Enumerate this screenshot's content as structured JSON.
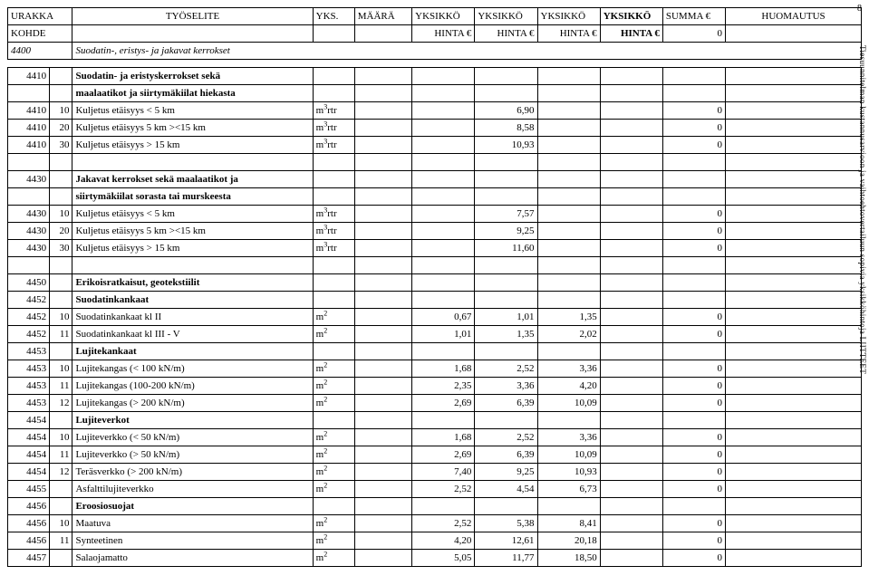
{
  "page_number": "8",
  "side_text": "Tiesuunnitelman kustannusarvioon ja vaihtoehtovertailuun sopivia yksikköhintoja LIITTEET",
  "header": {
    "c1": "URAKKA",
    "c2": "TYÖSELITE",
    "c3": "YKS.",
    "c4": "MÄÄRÄ",
    "c5": "YKSIKKÖ",
    "c6": "YKSIKKÖ",
    "c7": "YKSIKKÖ",
    "c8": "YKSIKKÖ",
    "c9": "SUMMA €",
    "c10": "HUOMAUTUS",
    "r2c1": "KOHDE",
    "r2c5": "HINTA €",
    "r2c6": "HINTA €",
    "r2c7": "HINTA €",
    "r2c8": "HINTA €",
    "r2c9": "0"
  },
  "cols": {
    "w1": "40px",
    "w2": "22px",
    "w3": "230px",
    "w4": "40px",
    "w5": "55px",
    "w6": "60px",
    "w7": "60px",
    "w8": "60px",
    "w9": "60px",
    "w10": "60px",
    "w11": "130px"
  },
  "rows": [
    {
      "type": "section",
      "code": "4400",
      "desc": "Suodatin-, eristys- ja jakavat kerrokset"
    },
    {
      "type": "gap"
    },
    {
      "type": "group",
      "code": "4410",
      "desc": "Suodatin- ja eristyskerrokset sekä"
    },
    {
      "type": "groupcont",
      "desc": "maalaatikot ja siirtymäkiilat hiekasta"
    },
    {
      "type": "data",
      "code": "4410",
      "sub": "10",
      "desc": "Kuljetus etäisyys < 5 km",
      "unit": "m³rtr",
      "v1": "",
      "v2": "",
      "v3": "6,90",
      "v4": "",
      "sum": "0"
    },
    {
      "type": "data",
      "code": "4410",
      "sub": "20",
      "desc": "Kuljetus etäisyys 5 km ><15 km",
      "unit": "m³rtr",
      "v1": "",
      "v2": "",
      "v3": "8,58",
      "v4": "",
      "sum": "0"
    },
    {
      "type": "data",
      "code": "4410",
      "sub": "30",
      "desc": "Kuljetus etäisyys > 15 km",
      "unit": "m³rtr",
      "v1": "",
      "v2": "",
      "v3": "10,93",
      "v4": "",
      "sum": "0"
    },
    {
      "type": "blank"
    },
    {
      "type": "group",
      "code": "4430",
      "desc": "Jakavat kerrokset sekä maalaatikot ja"
    },
    {
      "type": "groupcont",
      "desc": "siirtymäkiilat sorasta tai murskeesta"
    },
    {
      "type": "data",
      "code": "4430",
      "sub": "10",
      "desc": "Kuljetus etäisyys < 5 km",
      "unit": "m³rtr",
      "v1": "",
      "v2": "",
      "v3": "7,57",
      "v4": "",
      "sum": "0"
    },
    {
      "type": "data",
      "code": "4430",
      "sub": "20",
      "desc": "Kuljetus etäisyys 5 km ><15 km",
      "unit": "m³rtr",
      "v1": "",
      "v2": "",
      "v3": "9,25",
      "v4": "",
      "sum": "0"
    },
    {
      "type": "data",
      "code": "4430",
      "sub": "30",
      "desc": "Kuljetus etäisyys > 15 km",
      "unit": "m³rtr",
      "v1": "",
      "v2": "",
      "v3": "11,60",
      "v4": "",
      "sum": "0"
    },
    {
      "type": "blank"
    },
    {
      "type": "group",
      "code": "4450",
      "desc": "Erikoisratkaisut, geotekstiilit"
    },
    {
      "type": "group",
      "code": "4452",
      "desc": "Suodatinkankaat"
    },
    {
      "type": "data",
      "code": "4452",
      "sub": "10",
      "desc": "Suodatinkankaat kl II",
      "unit": "m²",
      "v1": "",
      "v2": "0,67",
      "v3": "1,01",
      "v4": "1,35",
      "sum": "0"
    },
    {
      "type": "data",
      "code": "4452",
      "sub": "11",
      "desc": "Suodatinkankaat kl III - V",
      "unit": "m²",
      "v1": "",
      "v2": "1,01",
      "v3": "1,35",
      "v4": "2,02",
      "sum": "0"
    },
    {
      "type": "group",
      "code": "4453",
      "desc": "Lujitekankaat"
    },
    {
      "type": "data",
      "code": "4453",
      "sub": "10",
      "desc": "Lujitekangas (< 100 kN/m)",
      "unit": "m²",
      "v1": "",
      "v2": "1,68",
      "v3": "2,52",
      "v4": "3,36",
      "sum": "0"
    },
    {
      "type": "data",
      "code": "4453",
      "sub": "11",
      "desc": "Lujitekangas (100-200 kN/m)",
      "unit": "m²",
      "v1": "",
      "v2": "2,35",
      "v3": "3,36",
      "v4": "4,20",
      "sum": "0"
    },
    {
      "type": "data",
      "code": "4453",
      "sub": "12",
      "desc": "Lujitekangas (> 200 kN/m)",
      "unit": "m²",
      "v1": "",
      "v2": "2,69",
      "v3": "6,39",
      "v4": "10,09",
      "sum": "0"
    },
    {
      "type": "group",
      "code": "4454",
      "desc": "Lujiteverkot"
    },
    {
      "type": "data",
      "code": "4454",
      "sub": "10",
      "desc": "Lujiteverkko (< 50 kN/m)",
      "unit": "m²",
      "v1": "",
      "v2": "1,68",
      "v3": "2,52",
      "v4": "3,36",
      "sum": "0"
    },
    {
      "type": "data",
      "code": "4454",
      "sub": "11",
      "desc": "Lujiteverkko (> 50 kN/m)",
      "unit": "m²",
      "v1": "",
      "v2": "2,69",
      "v3": "6,39",
      "v4": "10,09",
      "sum": "0"
    },
    {
      "type": "data",
      "code": "4454",
      "sub": "12",
      "desc": "Teräsverkko (> 200 kN/m)",
      "unit": "m²",
      "v1": "",
      "v2": "7,40",
      "v3": "9,25",
      "v4": "10,93",
      "sum": "0"
    },
    {
      "type": "data",
      "code": "4455",
      "sub": "",
      "desc": "Asfalttilujiteverkko",
      "unit": "m²",
      "v1": "",
      "v2": "2,52",
      "v3": "4,54",
      "v4": "6,73",
      "sum": "0"
    },
    {
      "type": "group",
      "code": "4456",
      "desc": "Eroosiosuojat"
    },
    {
      "type": "data",
      "code": "4456",
      "sub": "10",
      "desc": "Maatuva",
      "unit": "m²",
      "v1": "",
      "v2": "2,52",
      "v3": "5,38",
      "v4": "8,41",
      "sum": "0"
    },
    {
      "type": "data",
      "code": "4456",
      "sub": "11",
      "desc": "Synteetinen",
      "unit": "m²",
      "v1": "",
      "v2": "4,20",
      "v3": "12,61",
      "v4": "20,18",
      "sum": "0"
    },
    {
      "type": "data",
      "code": "4457",
      "sub": "",
      "desc": "Salaojamatto",
      "unit": "m²",
      "v1": "",
      "v2": "5,05",
      "v3": "11,77",
      "v4": "18,50",
      "sum": "0"
    }
  ]
}
